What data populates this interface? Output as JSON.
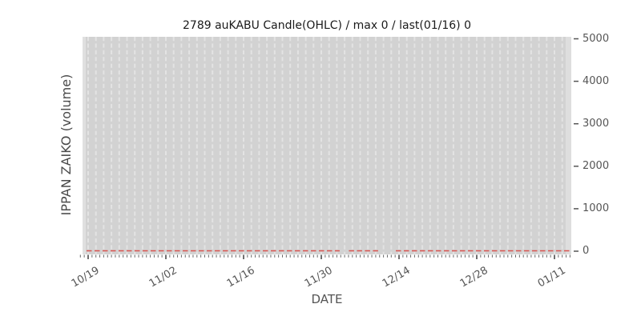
{
  "chart_data": {
    "type": "line",
    "title": "2789 auKABU Candle(OHLC) / max 0 / last(01/16) 0",
    "xlabel": "DATE",
    "ylabel": "IPPAN ZAIKO (volume)",
    "x_ticklabels": [
      "10/19",
      "11/02",
      "11/16",
      "11/30",
      "12/14",
      "12/28",
      "01/11"
    ],
    "y_ticks": [
      0,
      1000,
      2000,
      3000,
      4000,
      5000
    ],
    "ylim": [
      0,
      5000
    ],
    "y_axis_side": "right",
    "grid": "vertical dashed gridlines, one per trading day",
    "legend_position": "none",
    "series": [
      {
        "name": "IPPAN ZAIKO (volume)",
        "line_style": "dashed",
        "color": "#d9534f",
        "constant_value": 0,
        "max": 0,
        "last": {
          "date": "01/16",
          "value": 0
        },
        "x_range": [
          "10/19",
          "01/16"
        ],
        "segments_frac": [
          [
            0.0,
            0.523
          ],
          [
            0.542,
            0.604
          ],
          [
            0.639,
            1.0
          ]
        ]
      }
    ],
    "colors": {
      "figure_background": "#ffffff",
      "plot_background": "#d2d2d2",
      "gridline": "#e3e3e3",
      "series_line": "#d9534f",
      "tick_label": "#555555",
      "title_text": "#1a1a1a"
    }
  }
}
